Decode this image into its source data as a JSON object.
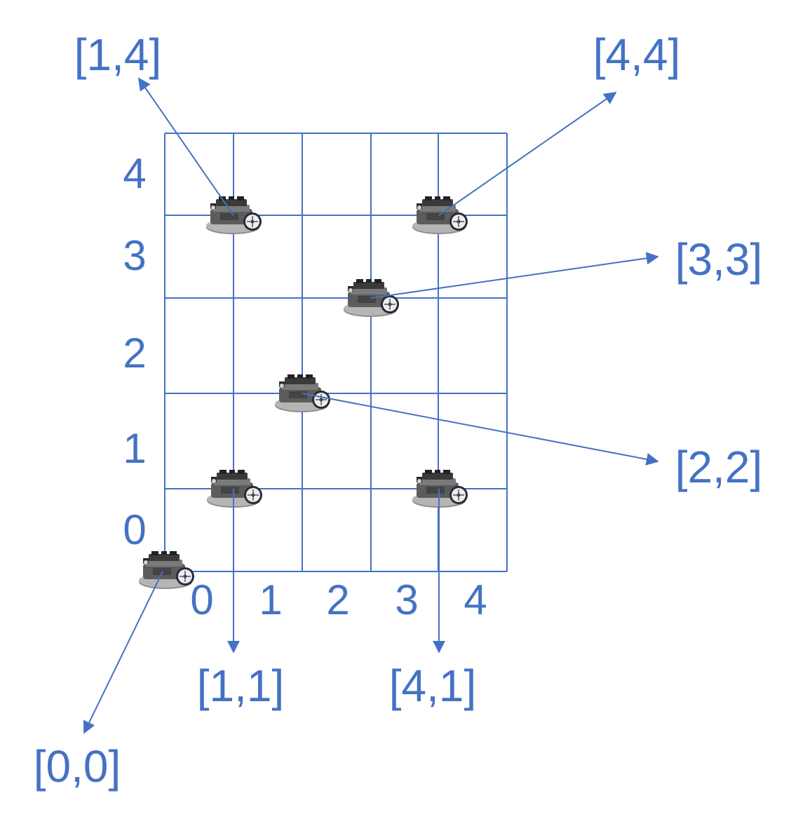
{
  "colors": {
    "line": "#4472C4",
    "text": "#4472C4",
    "robot_body": "#6b6b6b",
    "robot_dark": "#2e2e2e",
    "robot_light": "#a9a9a9",
    "wheel": "#e8e8f4"
  },
  "grid": {
    "columns": 5,
    "rows": 5,
    "x_tick_labels": [
      "0",
      "1",
      "2",
      "3",
      "4"
    ],
    "y_tick_labels": [
      "0",
      "1",
      "2",
      "3",
      "4"
    ]
  },
  "robots": [
    {
      "id": "robot-0-0",
      "coord_label": "[0,0]",
      "grid_x": 0,
      "grid_y": 0,
      "icon": "robot-icon"
    },
    {
      "id": "robot-1-1",
      "coord_label": "[1,1]",
      "grid_x": 1,
      "grid_y": 1,
      "icon": "robot-icon"
    },
    {
      "id": "robot-4-1",
      "coord_label": "[4,1]",
      "grid_x": 4,
      "grid_y": 1,
      "icon": "robot-icon"
    },
    {
      "id": "robot-2-2",
      "coord_label": "[2,2]",
      "grid_x": 2,
      "grid_y": 2,
      "icon": "robot-icon"
    },
    {
      "id": "robot-3-3",
      "coord_label": "[3,3]",
      "grid_x": 3,
      "grid_y": 3,
      "icon": "robot-icon"
    },
    {
      "id": "robot-1-4",
      "coord_label": "[1,4]",
      "grid_x": 1,
      "grid_y": 4,
      "icon": "robot-icon"
    },
    {
      "id": "robot-4-4",
      "coord_label": "[4,4]",
      "grid_x": 4,
      "grid_y": 4,
      "icon": "robot-icon"
    }
  ]
}
